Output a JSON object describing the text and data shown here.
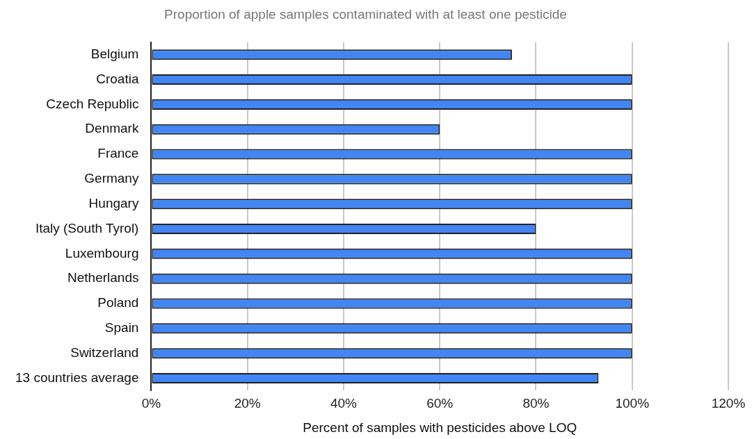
{
  "chart_data": {
    "type": "bar",
    "orientation": "horizontal",
    "title": "Proportion of apple samples contaminated with at least one pesticide",
    "xlabel": "Percent of samples with pesticides above LOQ",
    "categories": [
      "Belgium",
      "Croatia",
      "Czech Republic",
      "Denmark",
      "France",
      "Germany",
      "Hungary",
      "Italy (South Tyrol)",
      "Luxembourg",
      "Netherlands",
      "Poland",
      "Spain",
      "Switzerland",
      "13 countries average"
    ],
    "values": [
      75,
      100,
      100,
      60,
      100,
      100,
      100,
      80,
      100,
      100,
      100,
      100,
      100,
      93
    ],
    "color": "#4285f4",
    "xlim": [
      0,
      120
    ],
    "xticks": [
      {
        "value": 0,
        "label": "0%"
      },
      {
        "value": 20,
        "label": "20%"
      },
      {
        "value": 40,
        "label": "40%"
      },
      {
        "value": 60,
        "label": "60%"
      },
      {
        "value": 80,
        "label": "80%"
      },
      {
        "value": 100,
        "label": "100%"
      },
      {
        "value": 120,
        "label": "120%"
      }
    ],
    "grid": "x",
    "legend": false
  }
}
